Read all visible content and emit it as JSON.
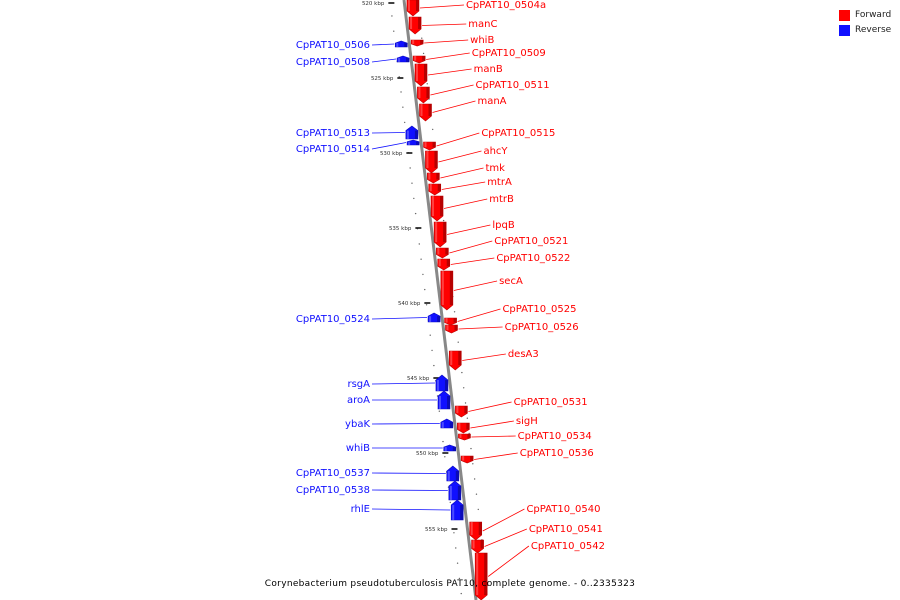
{
  "legend": {
    "forward": {
      "label": "Forward",
      "color": "#ff0000"
    },
    "reverse": {
      "label": "Reverse",
      "color": "#1010ff"
    }
  },
  "caption": "Corynebacterium pseudotuberculosis PAT10, complete genome. - 0..2335323",
  "ticks": [
    "520 kbp",
    "525 kbp",
    "530 kbp",
    "535 kbp",
    "540 kbp",
    "545 kbp",
    "550 kbp",
    "555 kbp"
  ],
  "genes_reverse": [
    "CpPAT10_0506",
    "CpPAT10_0508",
    "CpPAT10_0513",
    "CpPAT10_0514",
    "CpPAT10_0524",
    "rsgA",
    "aroA",
    "ybaK",
    "whiB",
    "CpPAT10_0537",
    "CpPAT10_0538",
    "rhlE"
  ],
  "genes_forward": [
    "CpPAT10_0504a",
    "manC",
    "whiB",
    "CpPAT10_0509",
    "manB",
    "CpPAT10_0511",
    "manA",
    "CpPAT10_0515",
    "ahcY",
    "tmk",
    "mtrA",
    "mtrB",
    "lpqB",
    "CpPAT10_0521",
    "CpPAT10_0522",
    "secA",
    "CpPAT10_0525",
    "CpPAT10_0526",
    "desA3",
    "CpPAT10_0531",
    "sigH",
    "CpPAT10_0534",
    "CpPAT10_0536",
    "CpPAT10_0540",
    "CpPAT10_0541",
    "CpPAT10_0542"
  ]
}
